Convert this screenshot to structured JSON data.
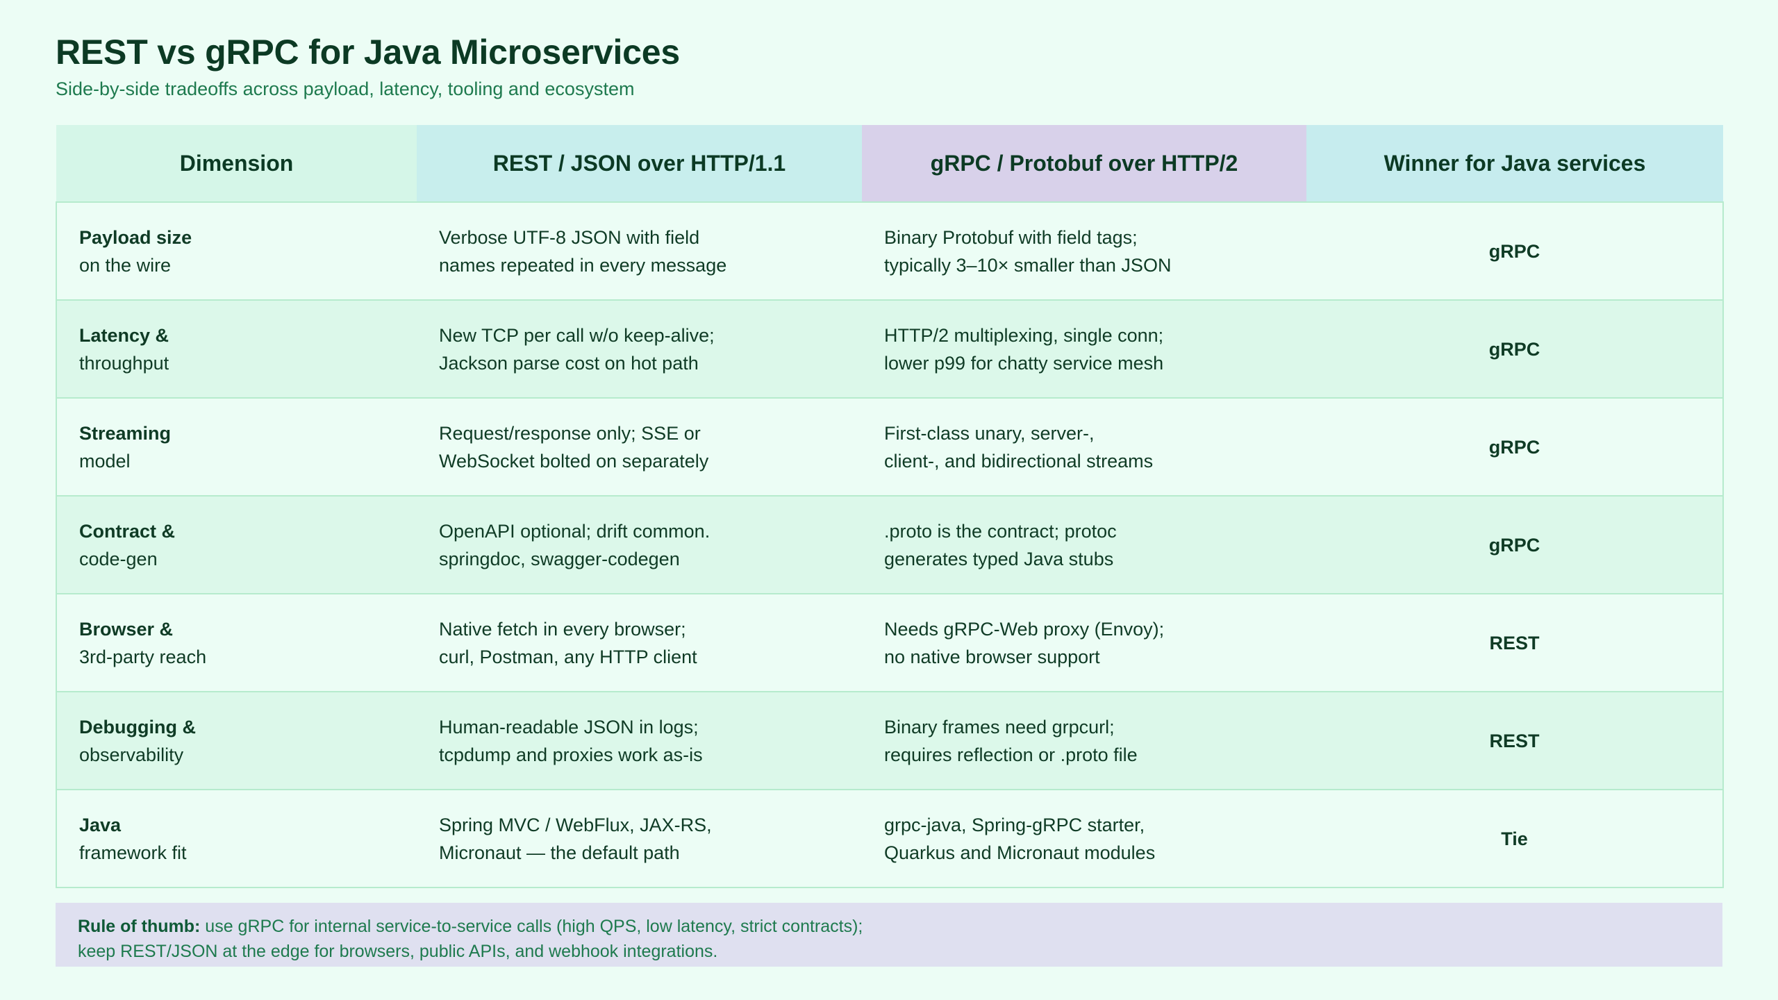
{
  "header": {
    "title": "REST vs gRPC for Java Microservices",
    "subtitle": "Side-by-side tradeoffs across payload, latency, tooling and ecosystem"
  },
  "table": {
    "columns": [
      "Dimension",
      "REST / JSON over HTTP/1.1",
      "gRPC / Protobuf over HTTP/2",
      "Winner for Java services"
    ],
    "rows": [
      {
        "dimension": {
          "main": "Payload size",
          "sub": "on the wire"
        },
        "rest": [
          "Verbose UTF-8 JSON with field",
          "names repeated in every message"
        ],
        "grpc": [
          "Binary Protobuf with field tags;",
          "typically 3–10× smaller than JSON"
        ],
        "winner": "gRPC"
      },
      {
        "dimension": {
          "main": "Latency &",
          "sub": "throughput"
        },
        "rest": [
          "New TCP per call w/o keep-alive;",
          "Jackson parse cost on hot path"
        ],
        "grpc": [
          "HTTP/2 multiplexing, single conn;",
          "lower p99 for chatty service mesh"
        ],
        "winner": "gRPC"
      },
      {
        "dimension": {
          "main": "Streaming",
          "sub": "model"
        },
        "rest": [
          "Request/response only; SSE or",
          "WebSocket bolted on separately"
        ],
        "grpc": [
          "First-class unary, server-,",
          "client-, and bidirectional streams"
        ],
        "winner": "gRPC"
      },
      {
        "dimension": {
          "main": "Contract &",
          "sub": "code-gen"
        },
        "rest": [
          "OpenAPI optional; drift common.",
          "springdoc, swagger-codegen"
        ],
        "grpc": [
          ".proto is the contract; protoc",
          "generates typed Java stubs"
        ],
        "winner": "gRPC"
      },
      {
        "dimension": {
          "main": "Browser &",
          "sub": "3rd-party reach"
        },
        "rest": [
          "Native fetch in every browser;",
          "curl, Postman, any HTTP client"
        ],
        "grpc": [
          "Needs gRPC-Web proxy (Envoy);",
          "no native browser support"
        ],
        "winner": "REST"
      },
      {
        "dimension": {
          "main": "Debugging &",
          "sub": "observability"
        },
        "rest": [
          "Human-readable JSON in logs;",
          "tcpdump and proxies work as-is"
        ],
        "grpc": [
          "Binary frames need grpcurl;",
          "requires reflection or .proto file"
        ],
        "winner": "REST"
      },
      {
        "dimension": {
          "main": "Java",
          "sub": "framework fit"
        },
        "rest": [
          "Spring MVC / WebFlux, JAX-RS,",
          "Micronaut — the default path"
        ],
        "grpc": [
          "grpc-java, Spring-gRPC starter,",
          "Quarkus and Micronaut modules"
        ],
        "winner": "Tie"
      }
    ]
  },
  "note": {
    "label": "Rule of thumb:",
    "line1": " use gRPC for internal service-to-service calls (high QPS, low latency, strict contracts);",
    "line2": "keep REST/JSON at the edge for browsers, public APIs, and webhook integrations."
  },
  "colors": {
    "background": "#ecfdf5",
    "title": "#0c3a24",
    "accent_green": "#1e7a4e",
    "header_dimension": "#d5f6e8",
    "header_rest": "#c8eeed",
    "header_grpc": "#d8d1ea",
    "header_winner": "#c6ecee",
    "note_background": "#dfe0f0"
  }
}
